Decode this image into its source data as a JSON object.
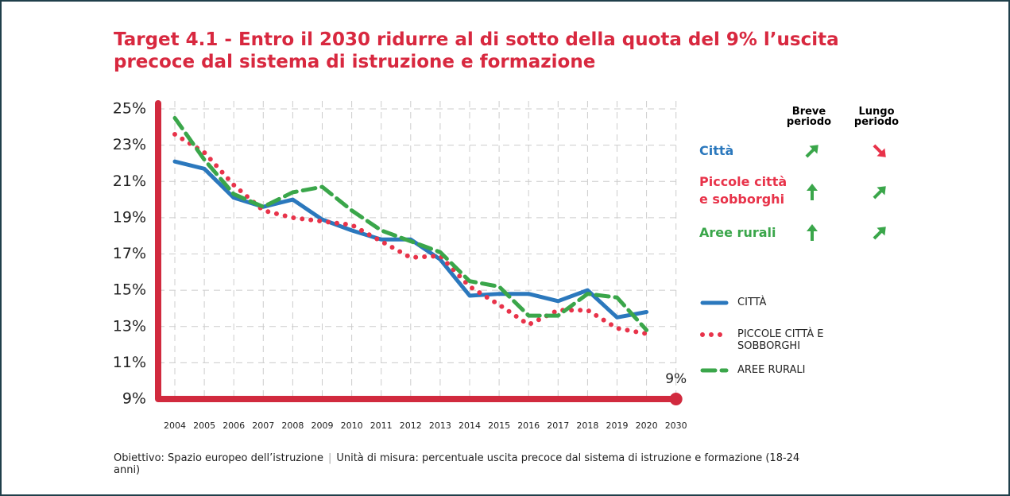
{
  "chart_data": {
    "type": "line",
    "title": "Target 4.1 - Entro il 2030 ridurre al di sotto della quota del 9% l’uscita precoce dal sistema di istruzione e formazione",
    "categories": [
      "2004",
      "2005",
      "2006",
      "2007",
      "2008",
      "2009",
      "2010",
      "2011",
      "2012",
      "2013",
      "2014",
      "2015",
      "2016",
      "2017",
      "2018",
      "2019",
      "2020",
      "2030"
    ],
    "series": [
      {
        "name": "CITTÀ",
        "label": "Città",
        "color": "#2b78bd",
        "dash": "solid",
        "trend_short": "up-right",
        "trend_long": "down-right",
        "values": [
          22.1,
          21.7,
          20.1,
          19.6,
          20.0,
          18.9,
          18.3,
          17.8,
          17.8,
          16.7,
          14.7,
          14.8,
          14.8,
          14.4,
          15.0,
          13.5,
          13.8,
          null
        ]
      },
      {
        "name": "PICCOLE CITTÀ E SOBBORGHI",
        "label": "Piccole città e sobborghi",
        "color": "#e8334a",
        "dash": "dotted",
        "trend_short": "up",
        "trend_long": "up-right",
        "values": [
          23.6,
          22.6,
          20.8,
          19.4,
          19.0,
          18.8,
          18.6,
          17.7,
          16.8,
          16.9,
          15.2,
          14.2,
          13.1,
          13.9,
          13.9,
          12.9,
          12.6,
          null
        ]
      },
      {
        "name": "AREE RURALI",
        "label": "Aree rurali",
        "color": "#3aa64a",
        "dash": "dashed",
        "trend_short": "up",
        "trend_long": "up-right",
        "values": [
          24.5,
          22.2,
          20.3,
          19.6,
          20.4,
          20.7,
          19.4,
          18.3,
          17.7,
          17.1,
          15.5,
          15.2,
          13.6,
          13.6,
          14.8,
          14.6,
          12.8,
          null
        ]
      }
    ],
    "target": {
      "value": 9,
      "label": "9%"
    },
    "trend_headers": [
      "Breve periodo",
      "Lungo periodo"
    ],
    "trend_colors": {
      "up": "#3aa64a",
      "up-right": "#3aa64a",
      "down-right": "#e8334a"
    },
    "ylim": [
      9,
      25
    ],
    "yticks": [
      {
        "value": 9,
        "label": "9%"
      },
      {
        "value": 11,
        "label": "11%"
      },
      {
        "value": 13,
        "label": "13%"
      },
      {
        "value": 15,
        "label": "15%"
      },
      {
        "value": 17,
        "label": "17%"
      },
      {
        "value": 19,
        "label": "19%"
      },
      {
        "value": 21,
        "label": "21%"
      },
      {
        "value": 23,
        "label": "23%"
      },
      {
        "value": 25,
        "label": "25%"
      }
    ],
    "grid": true,
    "footer": {
      "objective": "Obiettivo: Spazio europeo dell’istruzione",
      "unit": "Unità di misura: percentuale uscita precoce dal sistema di istruzione e formazione (18-24 anni)"
    }
  }
}
